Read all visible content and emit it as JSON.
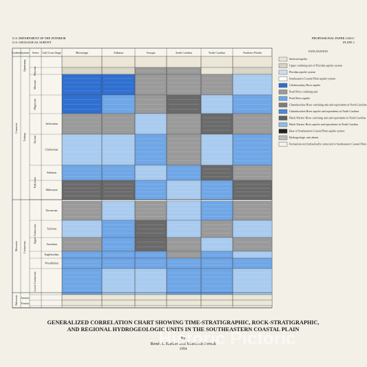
{
  "header": {
    "left": [
      "U.S. DEPARTMENT OF THE INTERIOR",
      "U.S. GEOLOGICAL SURVEY"
    ],
    "right": [
      "PROFESSIONAL PAPER 1410-C",
      "PLATE 1"
    ]
  },
  "table": {
    "columns": [
      "Erathem",
      "System",
      "Series",
      "Gulf Coast Stage",
      "Mississippi",
      "Alabama",
      "Georgia",
      "South Carolina",
      "North Carolina",
      "Northern Florida"
    ],
    "erathems": [
      "Cenozoic",
      "Mesozoic",
      "Paleozoic"
    ],
    "systems": [
      "Quaternary",
      "Tertiary",
      "Cretaceous",
      "Jurassic",
      "Triassic"
    ],
    "series": [
      "Pliocene",
      "Miocene",
      "Oligocene",
      "Eocene",
      "Paleocene",
      "Upper Cretaceous",
      "Lower Cretaceous"
    ],
    "stages": [
      "Jacksonian",
      "Claibornian",
      "Sabinian",
      "Midwayan",
      "Navarroan",
      "Tayloran",
      "Austinian",
      "Eaglefordian",
      "Woodbinian"
    ]
  },
  "explanation": {
    "title": "EXPLANATION",
    "items": [
      {
        "label": "Surficial aquifer",
        "color": "#e9e5d6"
      },
      {
        "label": "Upper confining unit of Floridan aquifer system",
        "color": "#d6d3c6"
      },
      {
        "label": "Floridan aquifer system",
        "color": "#cddff2"
      },
      {
        "label": "Southeastern Coastal Plain aquifer system",
        "color": "#ffffff"
      },
      {
        "label": "Chickasawhay River aquifer",
        "color": "#2f6fd0"
      },
      {
        "label": "Pearl River confining unit",
        "color": "#9a9a9a"
      },
      {
        "label": "Pearl River aquifer",
        "color": "#6fa6e6"
      },
      {
        "label": "Chattahoochee River confining unit and equivalents in North Carolina",
        "color": "#7d7d7d"
      },
      {
        "label": "Chattahoochee River aquifer and equivalents in North Carolina",
        "color": "#4a88dc"
      },
      {
        "label": "Black Warrior River confining unit and equivalents in North Carolina",
        "color": "#5f5f5f"
      },
      {
        "label": "Black Warrior River aquifer and equivalents in North Carolina",
        "color": "#8fbcec"
      },
      {
        "label": "Base of Southeastern Coastal Plain aquifer system",
        "color": "#222222"
      },
      {
        "label": "Hydrogeologic unit absent",
        "color": "#bdbdbd"
      },
      {
        "label": "Formations not hydraulically connected to Southeastern Coastal Plain aquifer system",
        "color": "#f4f1e8"
      }
    ]
  },
  "title": {
    "lines": [
      "GENERALIZED CORRELATION CHART SHOWING TIME-STRATIGRAPHIC, ROCK-STRATIGRAPHIC,",
      "AND REGIONAL HYDROGEOLOGIC UNITS IN THE SOUTHEASTERN COASTAL PLAIN"
    ],
    "byline": "By",
    "authors": "René A. Barker and Maribeth Pernik",
    "year": "1994"
  },
  "watermark": "Historic Pictoric"
}
